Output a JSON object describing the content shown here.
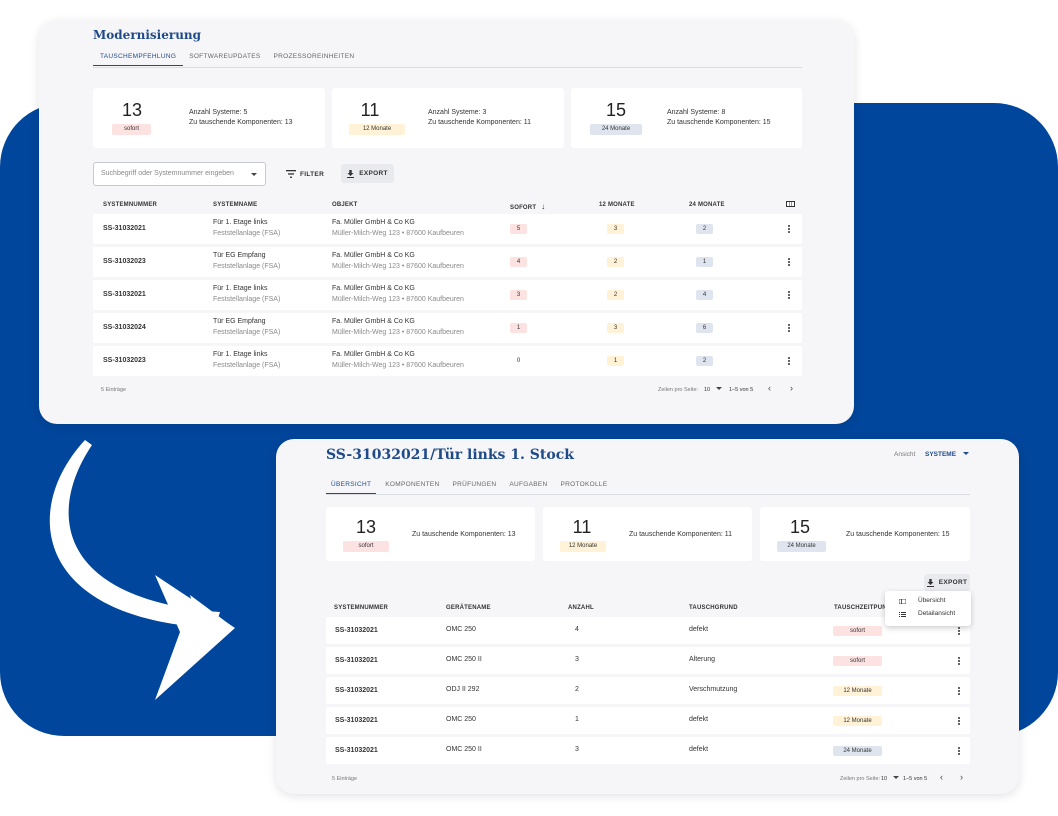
{
  "colors": {
    "brand_blue": "#00469c",
    "title_blue": "#1f4a8a",
    "red_badge": "#fde2e2",
    "yellow_badge": "#fff2d6",
    "blue_badge": "#dfe5ee"
  },
  "win1": {
    "title": "Modernisierung",
    "tabs": [
      "TAUSCHEMPFEHLUNG",
      "SOFTWAREUPDATES",
      "PROZESSOREINHEITEN"
    ],
    "cards": [
      {
        "num": "13",
        "badge": "sofort",
        "line1": "Anzahl Systeme: 5",
        "line2": "Zu tauschende Komponenten: 13"
      },
      {
        "num": "11",
        "badge": "12 Monate",
        "line1": "Anzahl Systeme: 3",
        "line2": "Zu tauschende Komponenten: 11"
      },
      {
        "num": "15",
        "badge": "24 Monate",
        "line1": "Anzahl Systeme: 8",
        "line2": "Zu tauschende Komponenten: 15"
      }
    ],
    "search_placeholder": "Suchbegriff oder Systemnummer eingeben",
    "filter_label": "FILTER",
    "export_label": "EXPORT",
    "columns": [
      "SYSTEMNUMMER",
      "SYSTEMNAME",
      "OBJEKT",
      "SOFORT",
      "12 MONATE",
      "24 MONATE"
    ],
    "rows": [
      {
        "nr": "SS-31032021",
        "name": "Für 1. Etage links",
        "type": "Feststellanlage (FSA)",
        "obj": "Fa. Müller GmbH & Co KG",
        "addr": "Müller-Milch-Weg 123 • 87600 Kaufbeuren",
        "sofort": "5",
        "m12": "3",
        "m24": "2"
      },
      {
        "nr": "SS-31032023",
        "name": "Tür EG Empfang",
        "type": "Feststellanlage (FSA)",
        "obj": "Fa. Müller GmbH & Co KG",
        "addr": "Müller-Milch-Weg 123 • 87600 Kaufbeuren",
        "sofort": "4",
        "m12": "2",
        "m24": "1"
      },
      {
        "nr": "SS-31032021",
        "name": "Für 1. Etage links",
        "type": "Feststellanlage (FSA)",
        "obj": "Fa. Müller GmbH & Co KG",
        "addr": "Müller-Milch-Weg 123 • 87600 Kaufbeuren",
        "sofort": "3",
        "m12": "2",
        "m24": "4"
      },
      {
        "nr": "SS-31032024",
        "name": "Tür EG Empfang",
        "type": "Feststellanlage (FSA)",
        "obj": "Fa. Müller GmbH & Co KG",
        "addr": "Müller-Milch-Weg 123 • 87600 Kaufbeuren",
        "sofort": "1",
        "m12": "3",
        "m24": "6"
      },
      {
        "nr": "SS-31032023",
        "name": "Für 1. Etage links",
        "type": "Feststellanlage (FSA)",
        "obj": "Fa. Müller GmbH & Co KG",
        "addr": "Müller-Milch-Weg 123 • 87600 Kaufbeuren",
        "sofort": "0",
        "m12": "1",
        "m24": "2"
      }
    ],
    "footer": {
      "entries": "5 Einträge",
      "per_page_label": "Zeilen pro Seite:",
      "per_page": "10",
      "range": "1–5 von 5"
    }
  },
  "win2": {
    "title": "SS-31032021/Tür links 1. Stock",
    "view_label": "Ansicht",
    "view_value": "SYSTEME",
    "tabs": [
      "ÜBERSICHT",
      "KOMPONENTEN",
      "PRÜFUNGEN",
      "AUFGABEN",
      "PROTOKOLLE"
    ],
    "cards": [
      {
        "num": "13",
        "badge": "sofort",
        "line1": "Zu tauschende Komponenten: 13"
      },
      {
        "num": "11",
        "badge": "12 Monate",
        "line1": "Zu tauschende Komponenten: 11"
      },
      {
        "num": "15",
        "badge": "24 Monate",
        "line1": "Zu tauschende Komponenten: 15"
      }
    ],
    "export_label": "EXPORT",
    "export_menu": [
      "Übersicht",
      "Detailansicht"
    ],
    "columns": [
      "SYSTEMNUMMER",
      "GERÄTENAME",
      "ANZAHL",
      "TAUSCHGRUND",
      "TAUSCHZEITPUNKT"
    ],
    "rows": [
      {
        "nr": "SS-31032021",
        "device": "OMC 250",
        "count": "4",
        "reason": "defekt",
        "when": "sofort"
      },
      {
        "nr": "SS-31032021",
        "device": "OMC 250 II",
        "count": "3",
        "reason": "Alterung",
        "when": "sofort"
      },
      {
        "nr": "SS-31032021",
        "device": "ODJ II 292",
        "count": "2",
        "reason": "Verschmutzung",
        "when": "12 Monate"
      },
      {
        "nr": "SS-31032021",
        "device": "OMC 250",
        "count": "1",
        "reason": "defekt",
        "when": "12 Monate"
      },
      {
        "nr": "SS-31032021",
        "device": "OMC 250 II",
        "count": "3",
        "reason": "defekt",
        "when": "24 Monate"
      }
    ],
    "footer": {
      "entries": "5 Einträge",
      "per_page_label": "Zeilen pro Seite:",
      "per_page": "10",
      "range": "1–5 von 5"
    }
  }
}
